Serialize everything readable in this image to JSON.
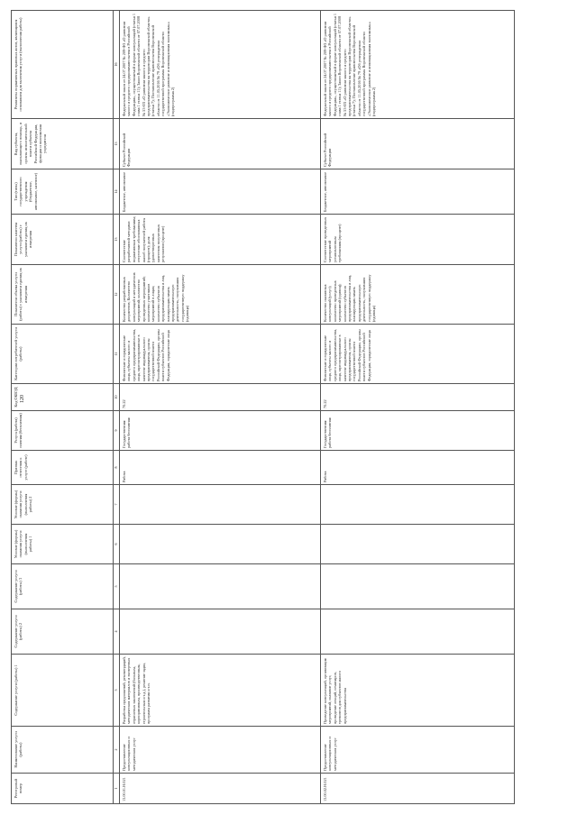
{
  "page_number": "120",
  "headers": [
    "Реестровый номер",
    "Наименование услуги (работы)",
    "Содержание услуги (работы) 1",
    "Содержание услуги (работы) 2",
    "Содержание услуги (работы) 3",
    "Условие (формы) оказания услуги (выполнения работы) 1",
    "Условие (формы) оказания услуги (выполнения работы) 2",
    "Признак отнесения к услуге (работе)",
    "Услуга (работа) платная (бесплатная)",
    "Код ОКВЭД",
    "Категории потребителей услуги (работы)",
    "Показатели объема услуги (работы) с указанием единиц их измерения",
    "Показатели качества услуги (работы) с указанием единиц их измерения",
    "Тип (типы) государственного учреждения (бюджетное, автономное, казенное)",
    "Вид субъекта, оказывающего помощь, и органы исполнительной власти субъекта Российской Федерации, функции и полномочия учредителя",
    "Реквизиты нормативных правовых актов, являющихся основанием для включения услуги (выполнения работы)"
  ],
  "col_numbers": [
    "1",
    "2",
    "3",
    "4",
    "5",
    "6",
    "7",
    "8",
    "9",
    "10",
    "11",
    "12",
    "13",
    "14",
    "15",
    "16"
  ],
  "rows": [
    {
      "cells": [
        "13.00.01.Н.021",
        "Предоставление консультационных и методических услуг",
        "Разработка предложений, рекомендаций, методических материалов и экспертных отраслевых заключений (больным, корпоративным, производственным, строительным и т.д.), решение задач, программ развития и т.п.",
        "",
        "",
        "",
        "",
        "Работа",
        "Государственная работа бесплатная",
        "70.22",
        "Физические и юридические лица, субъекты малого и среднего предпринимательства, лица, зарегистрированные в качестве индивидуального предпринимателя, органы государственной власти Российской Федерации, органы власти субъектов Российской Федерации, юридические лица",
        "Количество разработанных документов; Количество консультаций и методических мероприятий; количество проведенных мероприятий; количество участников мероприятий в лицах; количество субъектов предпринимательства и лиц, планирующих начать предпринимательскую деятельность, получивших государственную поддержку (единица)",
        "Соответствие разработанной методики нормативным требованиям; отсутствие обоснованных жалоб получателей работы (процент); доля удовлетворенных качеством полученных результатов (процент)",
        "Бюджетное, автономное",
        "Субъект Российской Федерации",
        "Федеральный закон от 24.07.2007 № 209-ФЗ «О развитии малого и среднего предпринимательства в Российской Федерации», осуществляемой в форме консультаций (статья 1 глава 1 статья 11); Закон Воронежской области от 07.07.2008 № 53-ОЗ «О развитии малого и среднего предпринимательства на территории Воронежской области» (статья 7); Постановление правительства Воронежской области от 11.05.2016 № 79 «Об утверждении государственной программы Воронежской области «Экономическое развитие и инновационная экономика»» (подпрограмма 2)"
      ]
    },
    {
      "cells": [
        "13.00.02.Н.021",
        "Предоставление консультационных и методических услуг",
        "Проведение консультаций, организация мероприятий, оказание услуг, проведение лекций, семинаров, тренингов для субъектов малого предпринимательства",
        "",
        "",
        "",
        "",
        "Работа",
        "Государственная работа бесплатная",
        "70.22",
        "Физические и юридические лица, субъекты малого и среднего предпринимательства, лица, зарегистрированные в качестве индивидуального предпринимателя, органы государственной власти Российской Федерации, органы власти субъектов Российской Федерации, юридические лица",
        "Количество оказанных консультаций (услуг); количество проведенных мероприятий (единиц); количество субъектов предпринимательства и лиц, планирующих начать предпринимательскую деятельность, получивших государственную поддержку (единица)",
        "Соответствие проведенных мероприятий установленным требованиям (процент)",
        "Бюджетное, автономное",
        "Субъект Российской Федерации",
        "Федеральный закон от 24.07.2007 № 209-ФЗ «О развитии малого и среднего предпринимательства в Российской Федерации», осуществляемой в форме консультаций (статья 1 глава 1 статья 11); Закон Воронежской области от 07.07.2008 № 53-ОЗ «О развитии малого и среднего предпринимательства на территории Воронежской области» (статья 7); Постановление правительства Воронежской области от 11.05.2016 № 79 «Об утверждении государственной программы Воронежской области «Экономическое развитие и инновационная экономика»» (подпрограмма 2)"
      ]
    }
  ]
}
